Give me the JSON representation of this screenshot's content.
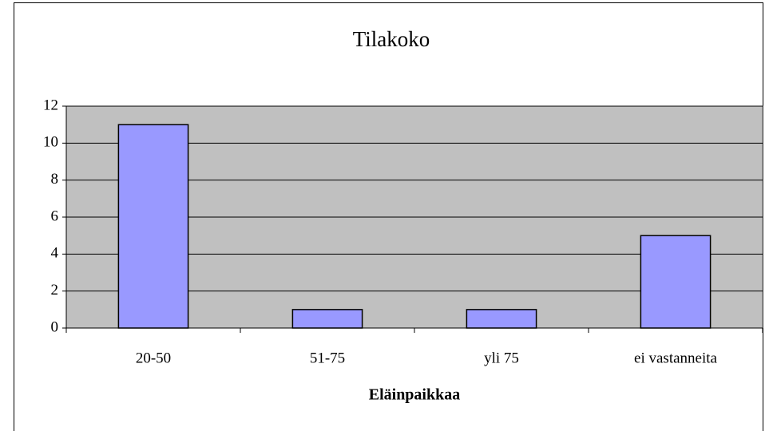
{
  "chart_data": {
    "type": "bar",
    "title": "Tilakoko",
    "x_label": "Eläinpaikkaa",
    "categories": [
      "20-50",
      "51-75",
      "yli 75",
      "ei vastanneita"
    ],
    "values": [
      11,
      1,
      1,
      5
    ],
    "color": "#9999ff",
    "ylim": [
      0,
      12
    ],
    "yticks": [
      0,
      2,
      4,
      6,
      8,
      10,
      12
    ],
    "grid": true
  }
}
